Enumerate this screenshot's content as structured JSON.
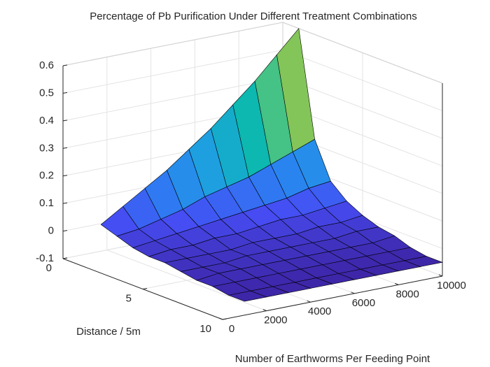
{
  "chart_data": {
    "type": "surface",
    "title": "Percentage of Pb Purification Under Different Treatment Combinations",
    "xlabel": "Number of Earthworms Per Feeding Point",
    "ylabel": "Distance / 5m",
    "x": [
      1000,
      2000,
      3000,
      4000,
      5000,
      6000,
      7000,
      8000,
      9000,
      10000
    ],
    "y": [
      1,
      2,
      3,
      4,
      5,
      6,
      7,
      8,
      9,
      10
    ],
    "z": [
      [
        0.03,
        0.08,
        0.13,
        0.18,
        0.24,
        0.3,
        0.37,
        0.44,
        0.52,
        0.6
      ],
      [
        0.01,
        0.02,
        0.04,
        0.06,
        0.09,
        0.11,
        0.13,
        0.16,
        0.19,
        0.22
      ],
      [
        -0.01,
        0.0,
        0.01,
        0.02,
        0.03,
        0.04,
        0.05,
        0.06,
        0.08,
        0.09
      ],
      [
        -0.02,
        -0.01,
        -0.01,
        0.0,
        0.0,
        0.01,
        0.02,
        0.02,
        0.03,
        0.04
      ],
      [
        -0.02,
        -0.02,
        -0.02,
        -0.02,
        -0.01,
        -0.01,
        -0.01,
        0.0,
        0.0,
        0.01
      ],
      [
        -0.03,
        -0.03,
        -0.03,
        -0.02,
        -0.02,
        -0.02,
        -0.02,
        -0.02,
        -0.01,
        -0.01
      ],
      [
        -0.04,
        -0.03,
        -0.03,
        -0.03,
        -0.03,
        -0.03,
        -0.03,
        -0.03,
        -0.03,
        -0.02
      ],
      [
        -0.04,
        -0.04,
        -0.04,
        -0.04,
        -0.04,
        -0.04,
        -0.04,
        -0.04,
        -0.04,
        -0.04
      ],
      [
        -0.05,
        -0.05,
        -0.05,
        -0.05,
        -0.05,
        -0.05,
        -0.05,
        -0.05,
        -0.05,
        -0.05
      ],
      [
        -0.05,
        -0.05,
        -0.05,
        -0.05,
        -0.05,
        -0.05,
        -0.05,
        -0.05,
        -0.05,
        -0.05
      ]
    ],
    "xlim": [
      0,
      10000
    ],
    "ylim": [
      0,
      10
    ],
    "zlim": [
      -0.1,
      0.6
    ],
    "xticks": [
      0,
      2000,
      4000,
      6000,
      8000,
      10000
    ],
    "yticks": [
      0,
      5,
      10
    ],
    "zticks": [
      -0.1,
      0,
      0.1,
      0.2,
      0.3,
      0.4,
      0.5,
      0.6
    ],
    "grid": true,
    "colormap": "parula",
    "edgecolor": "#000000"
  }
}
